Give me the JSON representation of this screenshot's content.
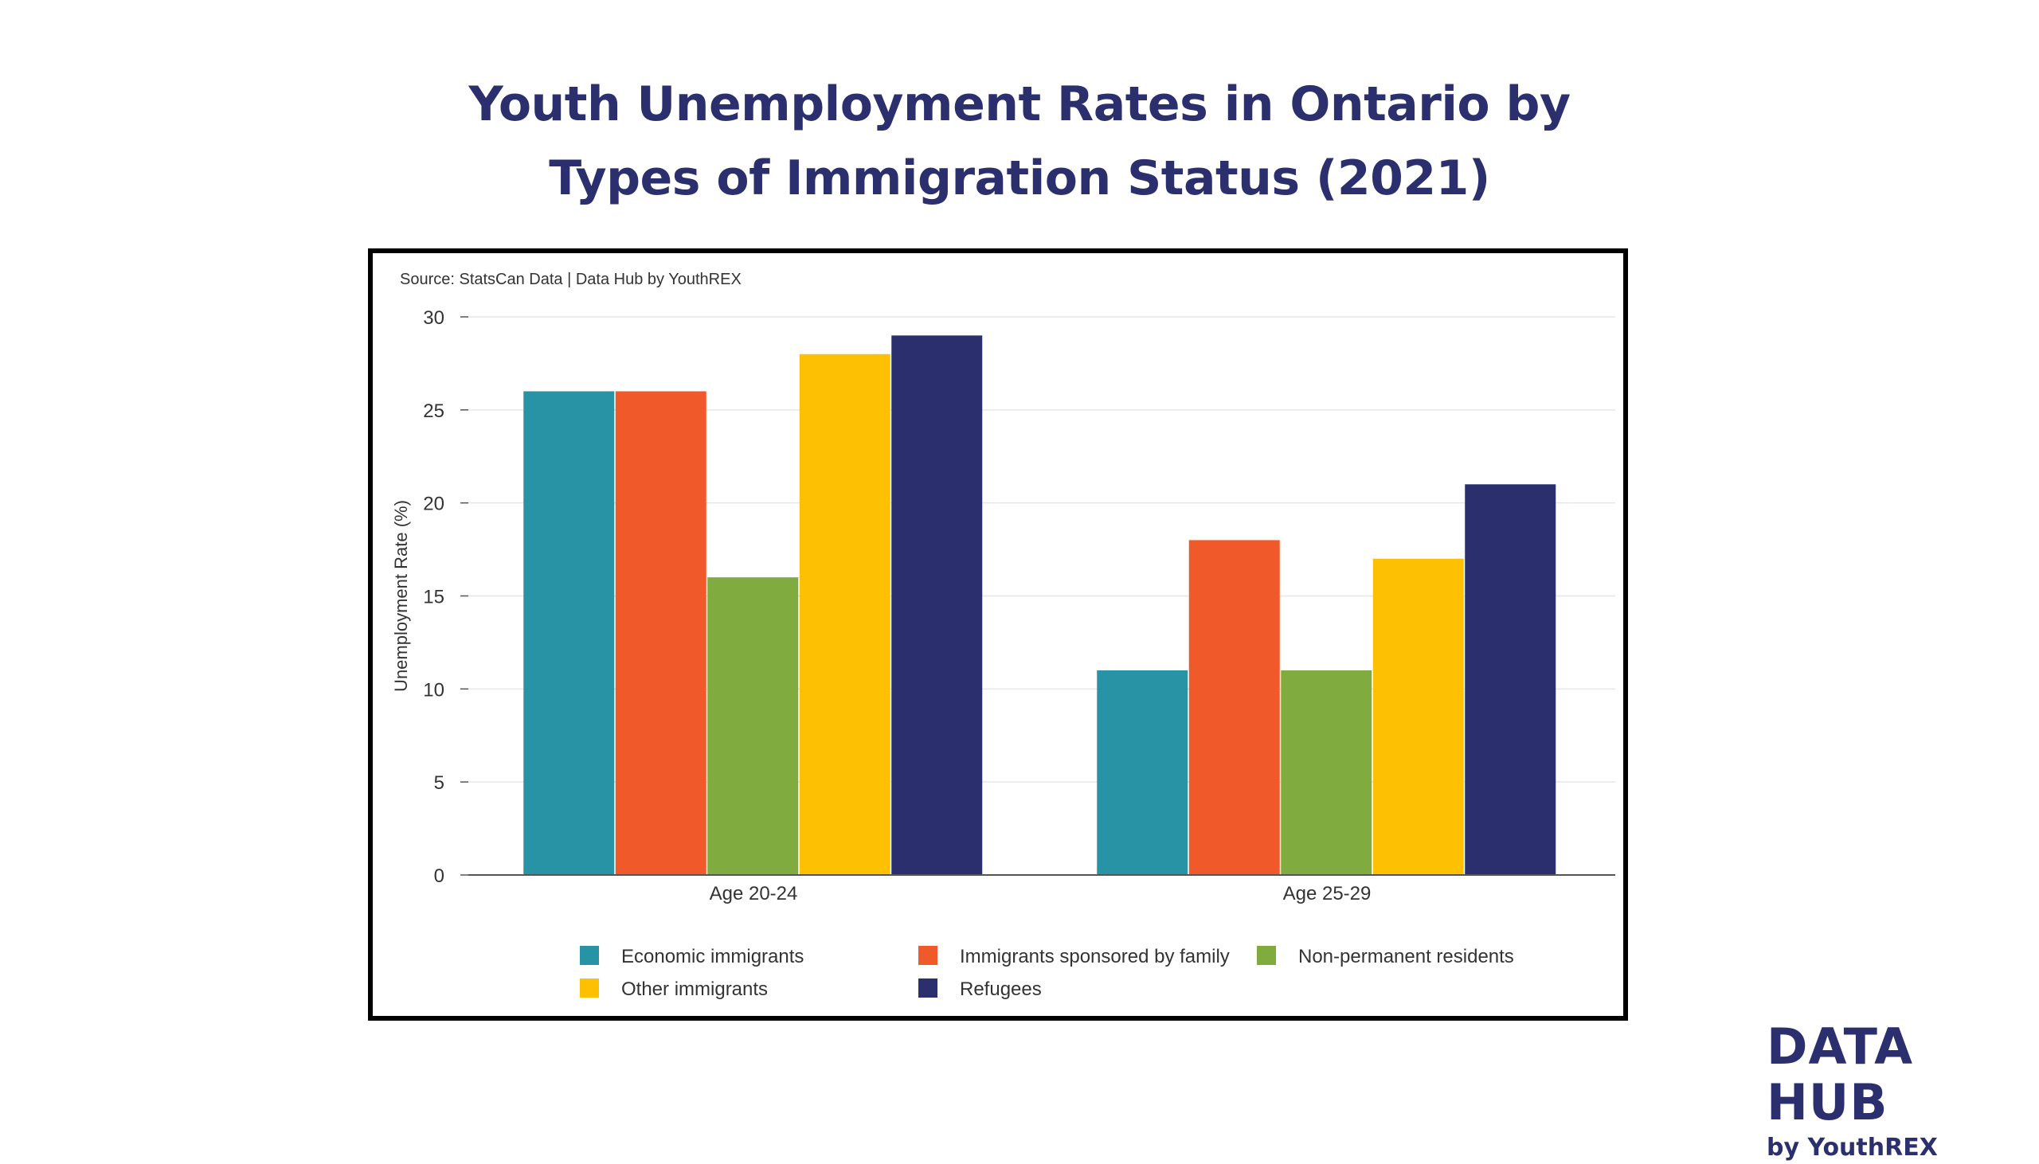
{
  "title": {
    "line1": "Youth Unemployment Rates in Ontario by",
    "line2": "Types of Immigration Status (2021)"
  },
  "source": "Source: StatsCan Data | Data Hub by YouthREX",
  "brand": {
    "main": "DATA HUB",
    "sub": "by YouthREX"
  },
  "chart_data": {
    "type": "bar",
    "categories": [
      "Age 20-24",
      "Age 25-29"
    ],
    "series": [
      {
        "name": "Economic immigrants",
        "color": "#2993a6",
        "values": [
          26,
          11
        ]
      },
      {
        "name": "Immigrants sponsored by family",
        "color": "#f05a2b",
        "values": [
          26,
          18
        ]
      },
      {
        "name": "Non-permanent residents",
        "color": "#80ab3e",
        "values": [
          16,
          11
        ]
      },
      {
        "name": "Other immigrants",
        "color": "#fdc003",
        "values": [
          28,
          17
        ]
      },
      {
        "name": "Refugees",
        "color": "#2b2f6e",
        "values": [
          29,
          21
        ]
      }
    ],
    "ylabel": "Unemployment Rate (%)",
    "ylim": [
      0,
      30
    ],
    "yticks": [
      0,
      5,
      10,
      15,
      20,
      25,
      30
    ],
    "grid": true,
    "legend": "bottom"
  }
}
